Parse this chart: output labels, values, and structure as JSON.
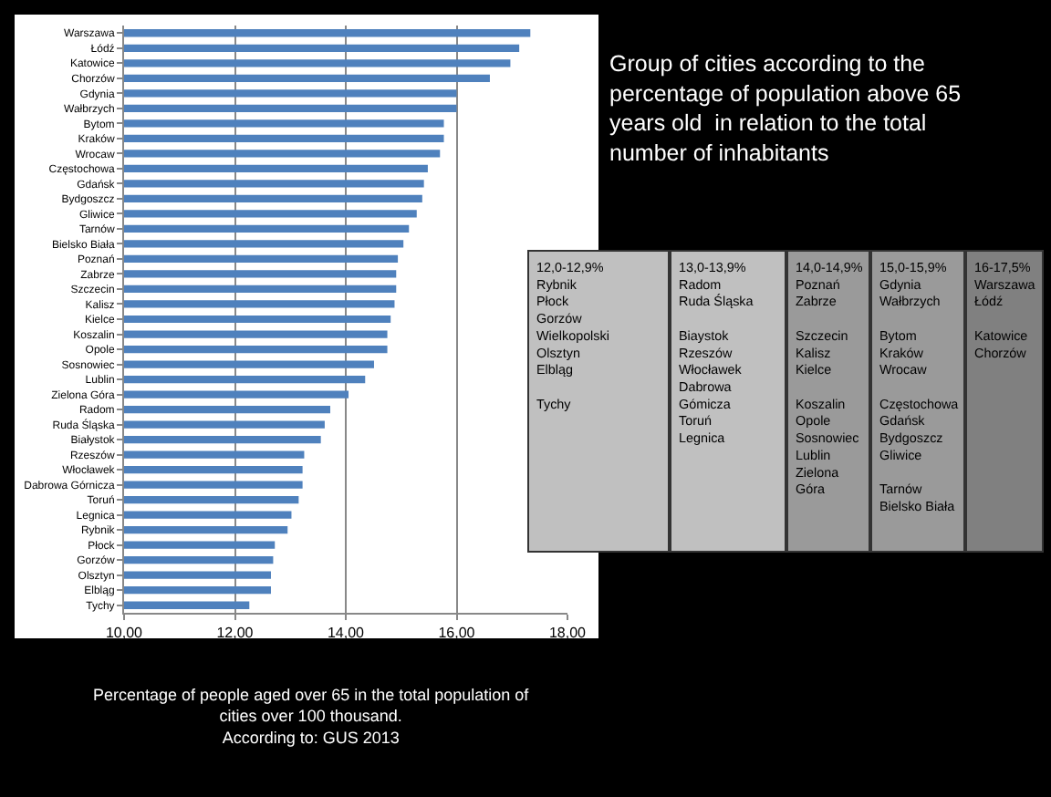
{
  "chart_data": {
    "type": "bar",
    "orientation": "horizontal",
    "title": "Group of cities according to the percentage of population above 65 years old  in relation to the total number of inhabitants",
    "categories": [
      "Warszawa",
      "Łódź",
      "Katowice",
      "Chorzów",
      "Gdynia",
      "Wałbrzych",
      "Bytom",
      "Kraków",
      "Wrocaw",
      "Częstochowa",
      "Gdańsk",
      "Bydgoszcz",
      "Gliwice",
      "Tarnów",
      "Bielsko Biała",
      "Poznań",
      "Zabrze",
      "Szczecin",
      "Kalisz",
      "Kielce",
      "Koszalin",
      "Opole",
      "Sosnowiec",
      "Lublin",
      "Zielona Góra",
      "Radom",
      "Ruda Śląska",
      "Białystok",
      "Rzeszów",
      "Włocławek",
      "Dabrowa Górnicza",
      "Toruń",
      "Legnica",
      "Rybnik",
      "Płock",
      "Gorzów",
      "Olsztyn",
      "Elbląg",
      "Tychy"
    ],
    "values": [
      17.33,
      17.13,
      16.97,
      16.6,
      16.0,
      16.0,
      15.77,
      15.77,
      15.7,
      15.48,
      15.41,
      15.38,
      15.28,
      15.14,
      15.04,
      14.94,
      14.91,
      14.91,
      14.88,
      14.81,
      14.75,
      14.75,
      14.51,
      14.35,
      14.05,
      13.72,
      13.62,
      13.55,
      13.25,
      13.22,
      13.22,
      13.15,
      13.02,
      12.95,
      12.72,
      12.69,
      12.65,
      12.65,
      12.26
    ],
    "color": "#4f81bd",
    "xlim": [
      10,
      18
    ],
    "xticks": [
      {
        "value": 10,
        "label": "10,00"
      },
      {
        "value": 12,
        "label": "12,00"
      },
      {
        "value": 14,
        "label": "14,00"
      },
      {
        "value": 16,
        "label": "16,00"
      },
      {
        "value": 18,
        "label": "18,00"
      }
    ],
    "grid": "x",
    "annotations": [
      "12,0-12,9%\nRybnik\nPłock\nGorzów\nWielkopolski\nOlsztyn\nElbląg\n\nTychy",
      "13,0-13,9%\nRadom\nRuda Śląska\n\nBiaystok\nRzeszów\nWłocławek\nDabrowa\nGómicza\nToruń\nLegnica",
      "14,0-14,9%\nPoznań\nZabrze\n\nSzczecin\nKalisz\nKielce\n\nKoszalin\nOpole\nSosnowiec\nLublin\nZielona\nGóra",
      "15,0-15,9%\nGdynia\nWałbrzych\n\nBytom\nKraków\nWrocaw\n\nCzęstochowa\nGdańsk\nBydgoszcz\nGliwice\n\nTarnów\nBielsko Biała",
      "16-17,5%\nWarszawa\nŁódź\n\nKatowice\nChorzów",
      "Percentage of people aged over 65 in the total population of\ncities over 100 thousand.\nAccording to: GUS 2013"
    ]
  }
}
